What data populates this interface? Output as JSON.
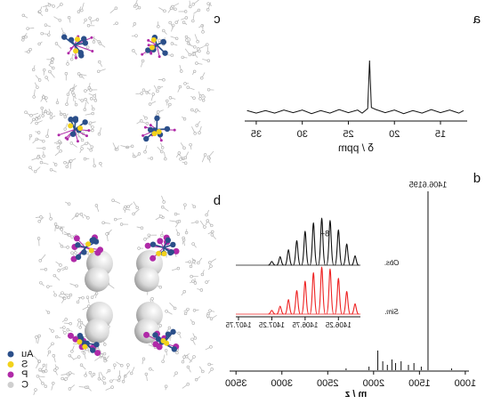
{
  "chart_data": [
    {
      "type": "line",
      "label": "a",
      "x_label": "δ / ppm",
      "color": "#111111",
      "x": [
        12.5,
        13,
        14,
        15,
        16,
        17,
        18,
        19,
        20,
        21,
        22,
        22.5,
        22.7,
        22.9,
        23.5,
        24,
        25,
        26,
        27,
        28,
        29,
        30,
        31,
        32,
        33,
        34,
        35,
        36
      ],
      "values": [
        2,
        -3,
        3,
        -2,
        4,
        -3,
        2,
        -4,
        3,
        -2,
        4,
        8,
        100,
        6,
        -3,
        3,
        -2,
        4,
        -3,
        2,
        -4,
        3,
        -2,
        3,
        -3,
        2,
        -3,
        2
      ],
      "xlim": [
        12.1,
        36.25
      ],
      "ylim": [
        -8,
        100
      ],
      "xticks": [
        15,
        20,
        25,
        30,
        35
      ]
    },
    {
      "type": "stem",
      "label": "d",
      "x_label": "m / z",
      "annotation": "1406.6195",
      "color": "#111111",
      "x": [
        1150,
        1406.6,
        1480,
        1560,
        1620,
        1700,
        1760,
        1800,
        1850,
        1900,
        1954,
        2050,
        2300
      ],
      "values": [
        1,
        100,
        2,
        4,
        3,
        5,
        4,
        6,
        3,
        5,
        11,
        2,
        1
      ],
      "xlim": [
        960,
        3570
      ],
      "ylim": [
        0,
        100
      ],
      "xticks": [
        1000,
        1500,
        2000,
        2500,
        3000,
        3500
      ]
    },
    {
      "type": "isotope",
      "annotation": "8+",
      "x": [
        1406,
        1406.125,
        1406.25,
        1406.375,
        1406.5,
        1406.625,
        1406.75,
        1406.875,
        1407,
        1407.125,
        1407.25
      ],
      "series": [
        {
          "name": "Obs.",
          "color": "#111111",
          "values": [
            20,
            45,
            75,
            95,
            100,
            90,
            72,
            52,
            33,
            18,
            8
          ]
        },
        {
          "name": "Sim.",
          "color": "#ee2222",
          "values": [
            22,
            48,
            76,
            96,
            100,
            88,
            70,
            50,
            31,
            17,
            8
          ]
        }
      ],
      "xlim": [
        1405.92,
        1407.79
      ],
      "ylim": [
        0,
        100
      ],
      "xticks": [
        1406.25,
        1406.75,
        1407.25,
        1407.75
      ]
    }
  ],
  "panels": [
    {
      "label": "c"
    },
    {
      "label": "b"
    }
  ],
  "legend": [
    {
      "name": "Au",
      "color": "#2b4f8a"
    },
    {
      "name": "S",
      "color": "#f2d21b"
    },
    {
      "name": "P",
      "color": "#b02aa8"
    },
    {
      "name": "C",
      "color": "#cfcfcf"
    }
  ]
}
